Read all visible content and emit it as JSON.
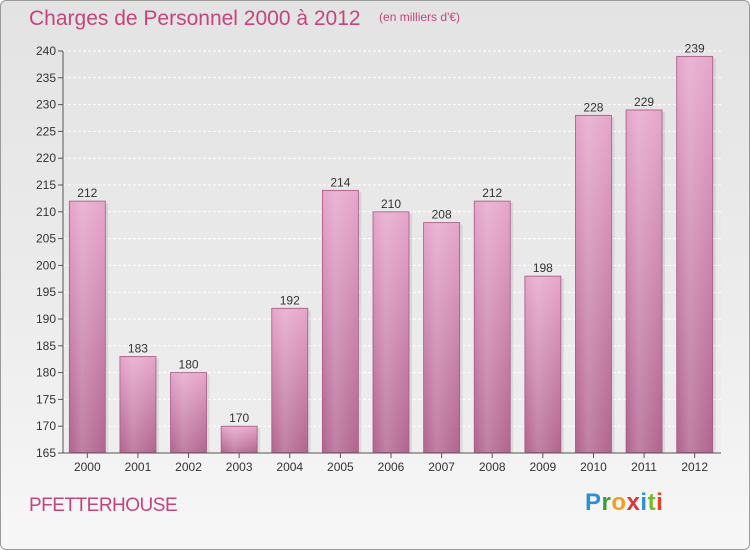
{
  "header": {
    "title": "Charges de Personnel 2000 à 2012",
    "subtitle": "(en milliers d'€)"
  },
  "footer": {
    "commune": "PFETTERHOUSE",
    "brand_letters": [
      "P",
      "r",
      "o",
      "x",
      "i",
      "t",
      "i"
    ],
    "brand_colors": [
      "#2f8fd6",
      "#3a9e3a",
      "#f0a020",
      "#d83a3a",
      "#2f8fd6",
      "#7ab62e",
      "#e4432a"
    ]
  },
  "chart_data": {
    "type": "bar",
    "categories": [
      "2000",
      "2001",
      "2002",
      "2003",
      "2004",
      "2005",
      "2006",
      "2007",
      "2008",
      "2009",
      "2010",
      "2011",
      "2012"
    ],
    "values": [
      212,
      183,
      180,
      170,
      192,
      214,
      210,
      208,
      212,
      198,
      228,
      229,
      239
    ],
    "ylim": [
      165,
      240
    ],
    "yticks": [
      165,
      170,
      175,
      180,
      185,
      190,
      195,
      200,
      205,
      210,
      215,
      220,
      225,
      230,
      235,
      240
    ],
    "grid": true,
    "bar_color": "#d98ab7",
    "text_color": "#333333"
  }
}
